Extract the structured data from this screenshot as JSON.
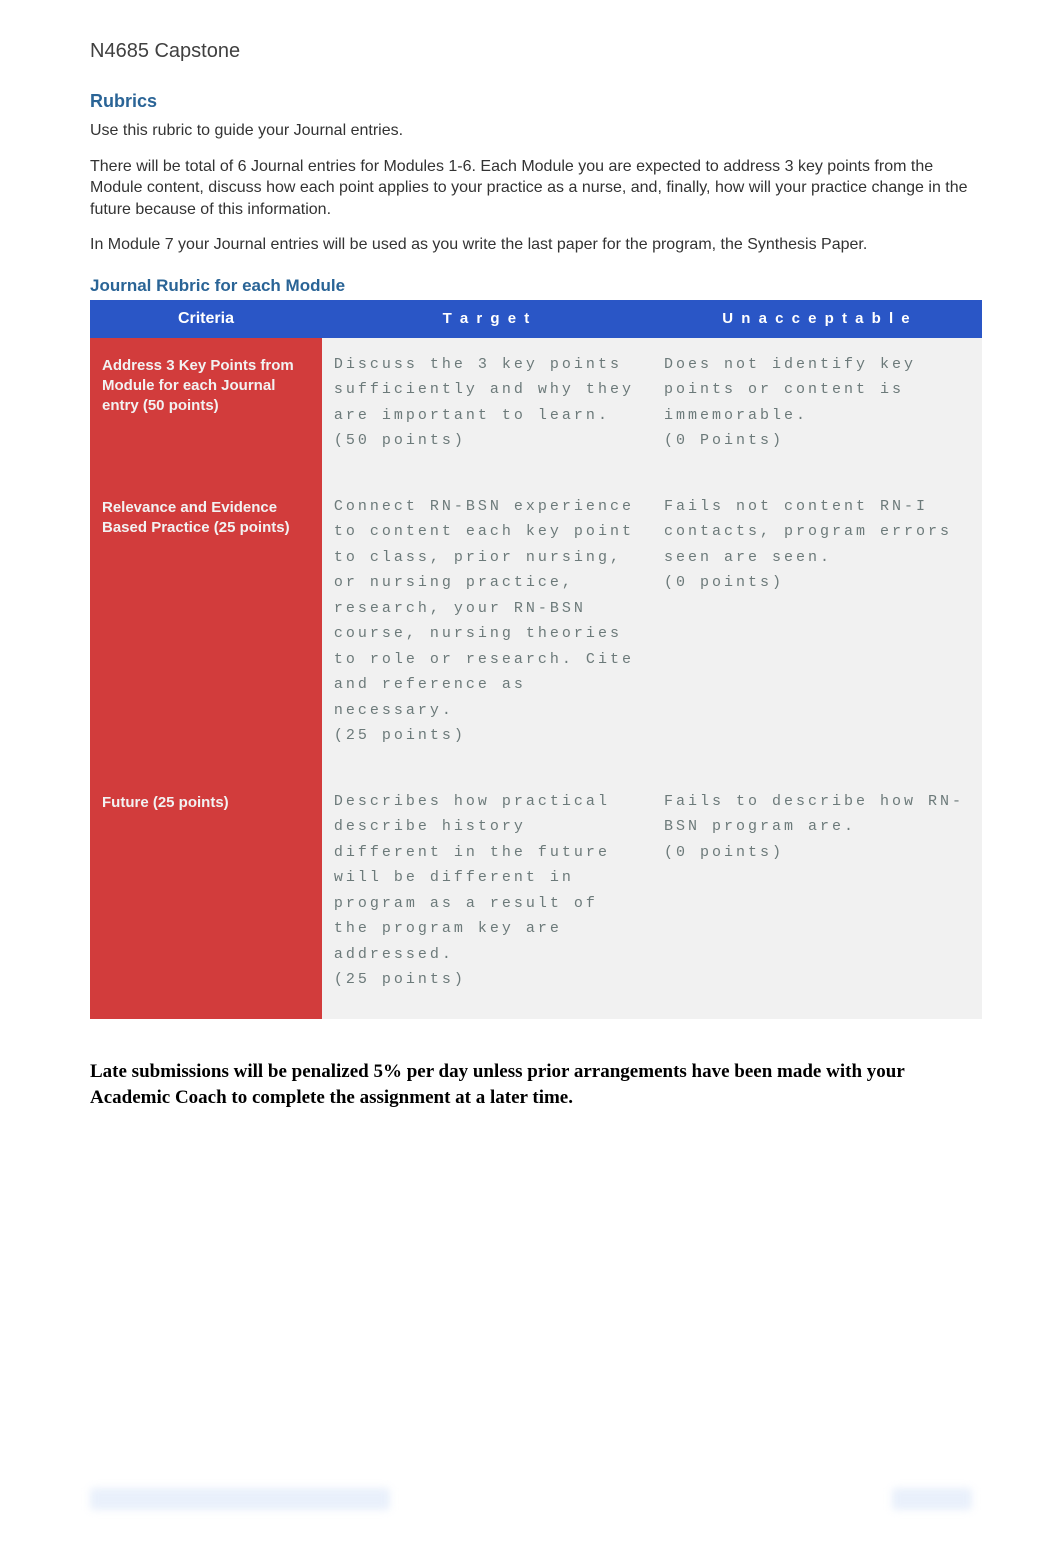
{
  "course_header": "N4685 Capstone",
  "rubrics": {
    "title": "Rubrics",
    "intro1": "Use this rubric to guide your Journal entries.",
    "intro2": "There will be total of 6 Journal entries for Modules 1-6. Each Module you are expected to address 3 key points from the Module content, discuss how each point applies to your practice as a nurse, and, finally, how will your practice change in the future because of this information.",
    "intro3": "In Module 7 your Journal entries will be used as you write the last paper for the program, the Synthesis Paper."
  },
  "rubric_subtitle": "Journal Rubric for each Module",
  "table": {
    "col_widths": [
      "26%",
      "37%",
      "37%"
    ],
    "headers": {
      "criteria": "Criteria",
      "target": "T a r g e t",
      "unacceptable": "U n a c c e p t a b l e"
    },
    "rows": [
      {
        "criteria": "Address 3 Key Points from Module for each Journal entry\n(50 points)",
        "target": "Discuss the 3 key points sufficiently and why they are important to learn.\n(50 points)",
        "unacceptable": "Does not identify key points or content is immemorable.\n(0 Points)"
      },
      {
        "criteria": "Relevance and Evidence Based Practice\n(25 points)",
        "target": "Connect RN-BSN experience to content each key point to class, prior nursing, or nursing practice, research, your RN-BSN course, nursing theories to role or research. Cite and reference as necessary.\n(25 points)",
        "unacceptable": "Fails not content RN-I contacts, program errors seen are seen.\n(0 points)"
      },
      {
        "criteria": "Future\n (25 points)",
        "target": "Describes how practical describe history different in the future will be different in program as a result of the program key are addressed.\n(25 points)",
        "unacceptable": "Fails to describe how RN-BSN program are.\n(0 points)"
      }
    ]
  },
  "late_note": "Late submissions will be penalized 5% per day unless prior arrangements have been made with your Academic Coach to complete the assignment at a later time.",
  "colors": {
    "header_blue": "#2a56c6",
    "criteria_red": "#d23c3c",
    "cell_grey": "#f1f1f1",
    "cell_text": "#6c7a7a",
    "section_blue": "#2a6496",
    "body_text": "#333333",
    "white": "#ffffff"
  },
  "fonts": {
    "body": "Arial",
    "cell": "Courier New",
    "note": "Times New Roman"
  }
}
